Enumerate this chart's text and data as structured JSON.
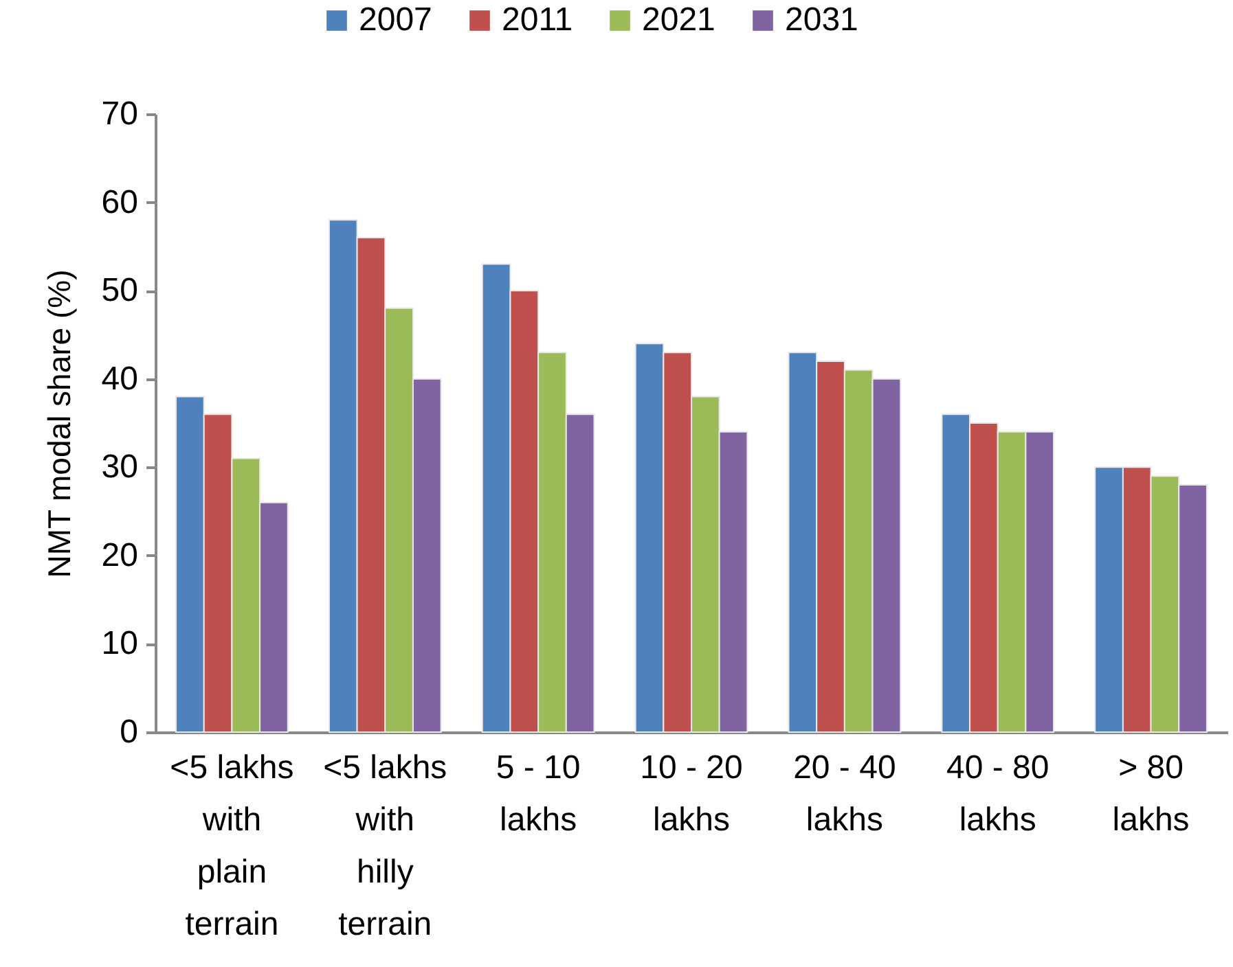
{
  "chart_data": {
    "type": "bar",
    "ylabel": "NMT modal share (%)",
    "categories": [
      "<5 lakhs with plain terrain",
      "<5 lakhs with hilly terrain",
      "5 - 10 lakhs",
      "10 - 20 lakhs",
      "20 - 40 lakhs",
      "40 - 80 lakhs",
      "> 80 lakhs"
    ],
    "series": [
      {
        "name": "2007",
        "color": "#4f81bd",
        "values": [
          38,
          58,
          53,
          44,
          43,
          36,
          30
        ]
      },
      {
        "name": "2011",
        "color": "#c0504d",
        "values": [
          36,
          56,
          50,
          43,
          42,
          35,
          30
        ]
      },
      {
        "name": "2021",
        "color": "#9bbb59",
        "values": [
          31,
          48,
          43,
          38,
          41,
          34,
          29
        ]
      },
      {
        "name": "2031",
        "color": "#8064a2",
        "values": [
          26,
          40,
          36,
          34,
          40,
          34,
          28
        ]
      }
    ],
    "ylim": [
      0,
      70
    ],
    "yticks": [
      0,
      10,
      20,
      30,
      40,
      50,
      60,
      70
    ],
    "legend": "top"
  }
}
